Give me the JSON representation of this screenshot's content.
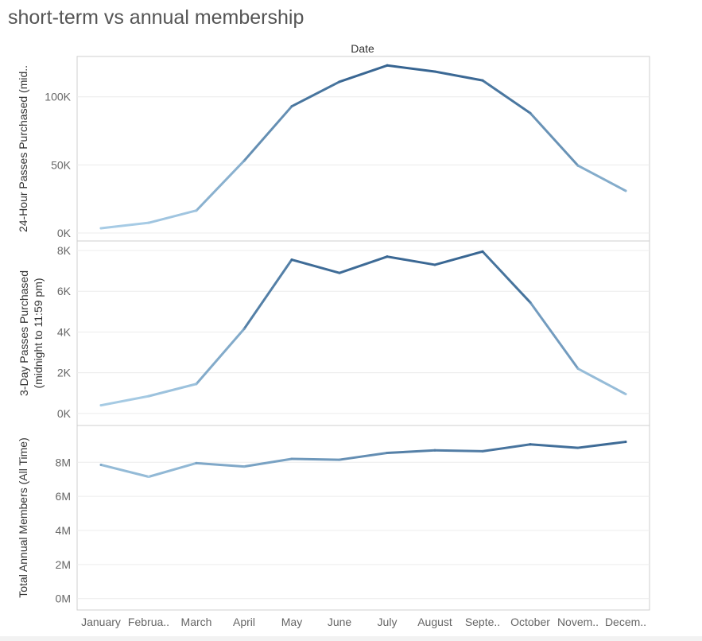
{
  "title": "short-term vs annual membership",
  "column_header": "Date",
  "colors": {
    "low": "#a8cde6",
    "high": "#34628f",
    "grid": "#ececec",
    "border": "#cfcfcf"
  },
  "chart_data": [
    {
      "type": "line",
      "ylabel": "24-Hour Passes Purchased (mid..",
      "ylim": [
        0,
        122000
      ],
      "yticks": [
        0,
        50000,
        100000
      ],
      "ytick_labels": [
        "0K",
        "50K",
        "100K"
      ],
      "categories": [
        "January",
        "Februa..",
        "March",
        "April",
        "May",
        "June",
        "July",
        "August",
        "Septe..",
        "October",
        "Novem..",
        "Decem.."
      ],
      "values": [
        3500,
        7500,
        16500,
        53000,
        93000,
        111000,
        123000,
        118500,
        112000,
        88000,
        49500,
        31000
      ]
    },
    {
      "type": "line",
      "ylabel": [
        "3-Day Passes Purchased",
        "(midnight to 11:59 pm)"
      ],
      "ylim": [
        -200,
        8000
      ],
      "yticks": [
        0,
        2000,
        4000,
        6000,
        8000
      ],
      "ytick_labels": [
        "0K",
        "2K",
        "4K",
        "6K",
        "8K"
      ],
      "categories": [
        "January",
        "Februa..",
        "March",
        "April",
        "May",
        "June",
        "July",
        "August",
        "Septe..",
        "October",
        "Novem..",
        "Decem.."
      ],
      "values": [
        400,
        850,
        1450,
        4150,
        7550,
        6900,
        7700,
        7300,
        7950,
        5450,
        2200,
        950
      ]
    },
    {
      "type": "line",
      "ylabel": "Total Annual Members (All Time)",
      "ylim": [
        -200000,
        9600000
      ],
      "yticks": [
        0,
        2000000,
        4000000,
        6000000,
        8000000
      ],
      "ytick_labels": [
        "0M",
        "2M",
        "4M",
        "6M",
        "8M"
      ],
      "categories": [
        "January",
        "Februa..",
        "March",
        "April",
        "May",
        "June",
        "July",
        "August",
        "Septe..",
        "October",
        "Novem..",
        "Decem.."
      ],
      "values": [
        7850000,
        7150000,
        7950000,
        7750000,
        8200000,
        8150000,
        8550000,
        8700000,
        8650000,
        9050000,
        8850000,
        9200000
      ]
    }
  ]
}
